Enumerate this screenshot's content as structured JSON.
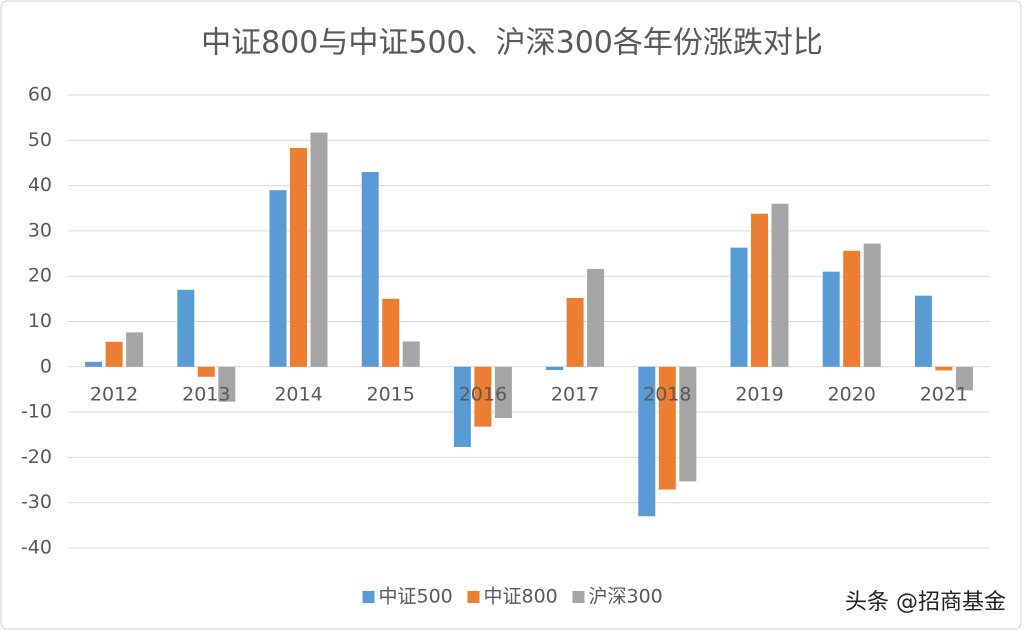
{
  "chart_data": {
    "type": "bar",
    "title": "中证800与中证500、沪深300各年份涨跌对比",
    "categories": [
      "2012",
      "2013",
      "2014",
      "2015",
      "2016",
      "2017",
      "2018",
      "2019",
      "2020",
      "2021"
    ],
    "series": [
      {
        "name": "中证500",
        "color": "#5b9bd5",
        "values": [
          1.1,
          17,
          39,
          43,
          -17.7,
          -0.7,
          -33,
          26.3,
          21,
          15.7
        ]
      },
      {
        "name": "中证800",
        "color": "#ed7d31",
        "values": [
          5.5,
          -2.2,
          48.3,
          15,
          -13.2,
          15.2,
          -27.1,
          33.8,
          25.6,
          -0.8
        ]
      },
      {
        "name": "沪深300",
        "color": "#a5a5a5",
        "values": [
          7.6,
          -7.7,
          51.7,
          5.6,
          -11.3,
          21.6,
          -25.3,
          36,
          27.2,
          -5.2
        ]
      }
    ],
    "ylim": [
      -40,
      60
    ],
    "yticks": [
      -40,
      -30,
      -20,
      -10,
      0,
      10,
      20,
      30,
      40,
      50,
      60
    ],
    "grid": true,
    "legend": "bottom",
    "watermark": "头条 @招商基金"
  }
}
